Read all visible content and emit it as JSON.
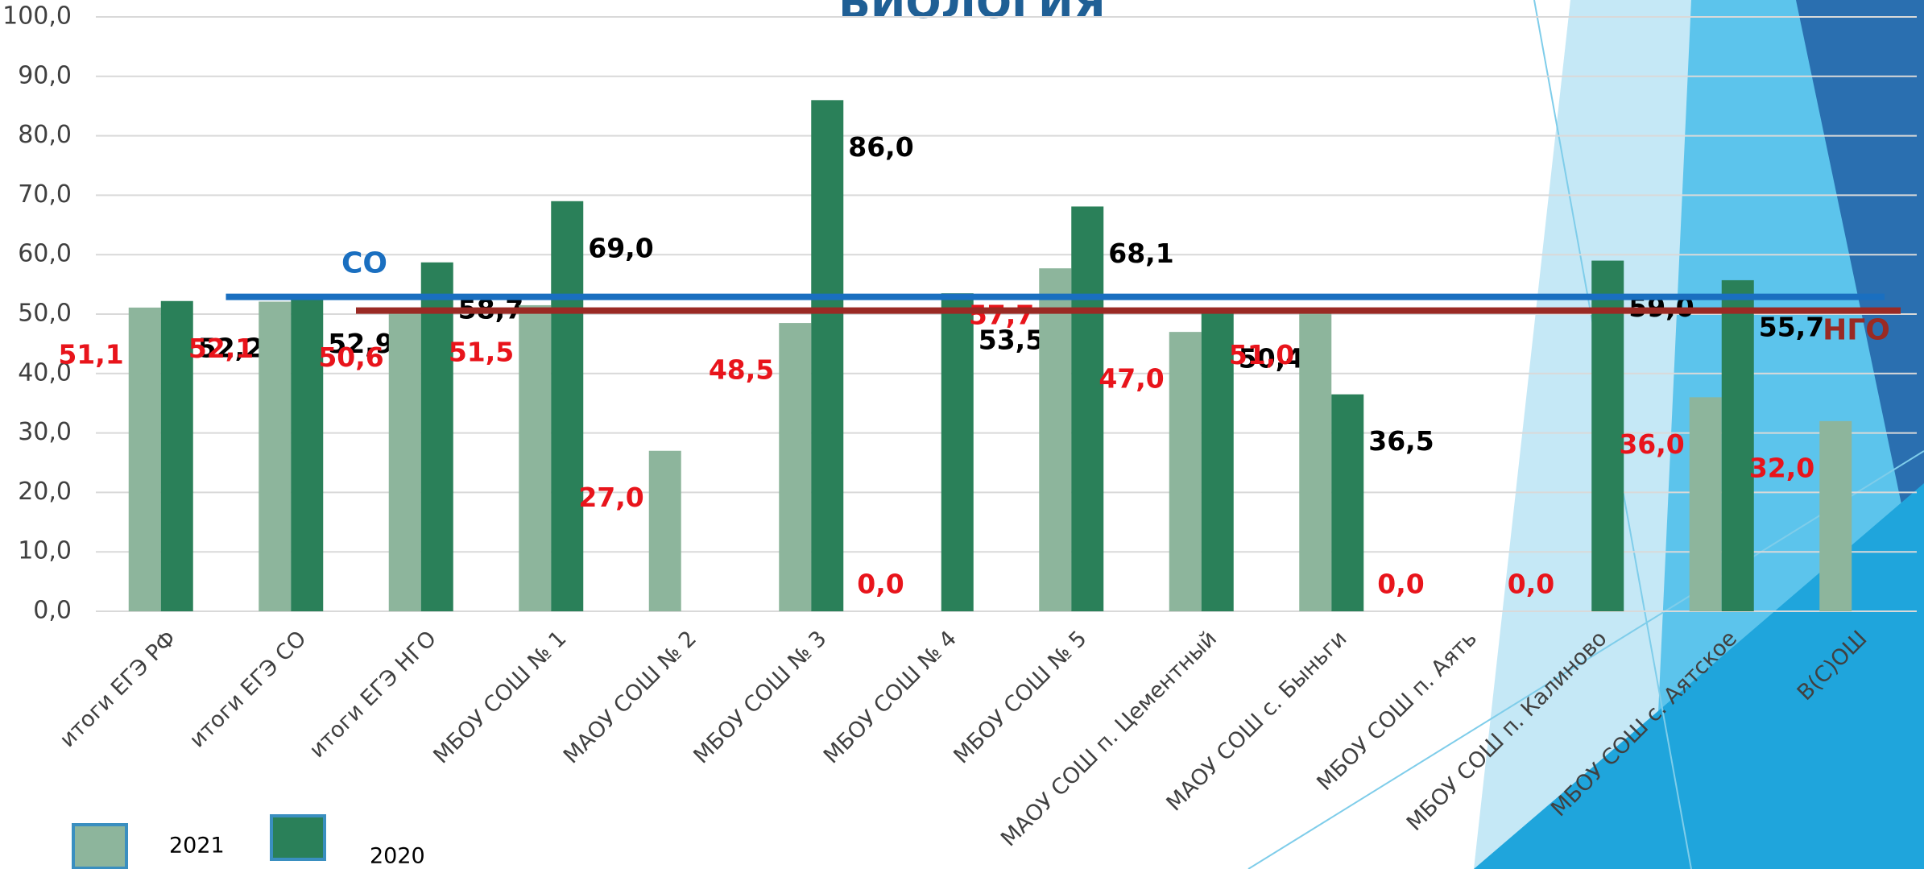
{
  "chart_data": {
    "type": "bar",
    "title": "БИОЛОГИЯ",
    "categories": [
      "итоги ЕГЭ РФ",
      "итоги ЕГЭ СО",
      "итоги ЕГЭ НГО",
      "МБОУ СОШ № 1",
      "МАОУ СОШ № 2",
      "МБОУ СОШ № 3",
      "МБОУ СОШ № 4",
      "МБОУ СОШ № 5",
      "МАОУ СОШ п. Цементный",
      "МАОУ СОШ с. Быньги",
      "МБОУ СОШ п. Аять",
      "МБОУ СОШ п. Калиново",
      "МБОУ СОШ с. Аятское",
      "В(С)ОШ"
    ],
    "series": [
      {
        "name": "2021",
        "color": "#8db59c",
        "label_color": "#e8141b",
        "values": [
          51.1,
          52.1,
          50.6,
          51.5,
          27.0,
          48.5,
          0.0,
          57.7,
          47.0,
          51.0,
          0.0,
          0.0,
          36.0,
          32.0
        ],
        "value_labels": [
          "51,1",
          "52,1",
          "50,6",
          "51,5",
          "27,0",
          "48,5",
          "0,0",
          "57,7",
          "47,0",
          "51,0",
          "0,0",
          "0,0",
          "36,0",
          "32,0"
        ]
      },
      {
        "name": "2020",
        "color": "#2a8059",
        "label_color": "#000000",
        "values": [
          52.2,
          52.9,
          58.7,
          69.0,
          null,
          86.0,
          53.5,
          68.1,
          50.4,
          36.5,
          null,
          59.0,
          55.7,
          null
        ],
        "value_labels": [
          "52,2",
          "52,9",
          "58,7",
          "69,0",
          null,
          "86,0",
          "53,5",
          "68,1",
          "50,4",
          "36,5",
          null,
          "59,0",
          "55,7",
          null
        ]
      }
    ],
    "ref_lines": [
      {
        "name": "СО",
        "value": 52.9,
        "color": "#1a6fc0"
      },
      {
        "name": "НГО",
        "value": 50.6,
        "color": "#9a2a24"
      }
    ],
    "ylim": [
      0,
      100
    ],
    "yticks": [
      {
        "value": 0,
        "label": "0,0"
      },
      {
        "value": 10,
        "label": "10,0"
      },
      {
        "value": 20,
        "label": "20,0"
      },
      {
        "value": 30,
        "label": "30,0"
      },
      {
        "value": 40,
        "label": "40,0"
      },
      {
        "value": 50,
        "label": "50,0"
      },
      {
        "value": 60,
        "label": "60,0"
      },
      {
        "value": 70,
        "label": "70,0"
      },
      {
        "value": 80,
        "label": "80,0"
      },
      {
        "value": 90,
        "label": "90,0"
      },
      {
        "value": 100,
        "label": "100,0"
      }
    ],
    "grid": true
  }
}
